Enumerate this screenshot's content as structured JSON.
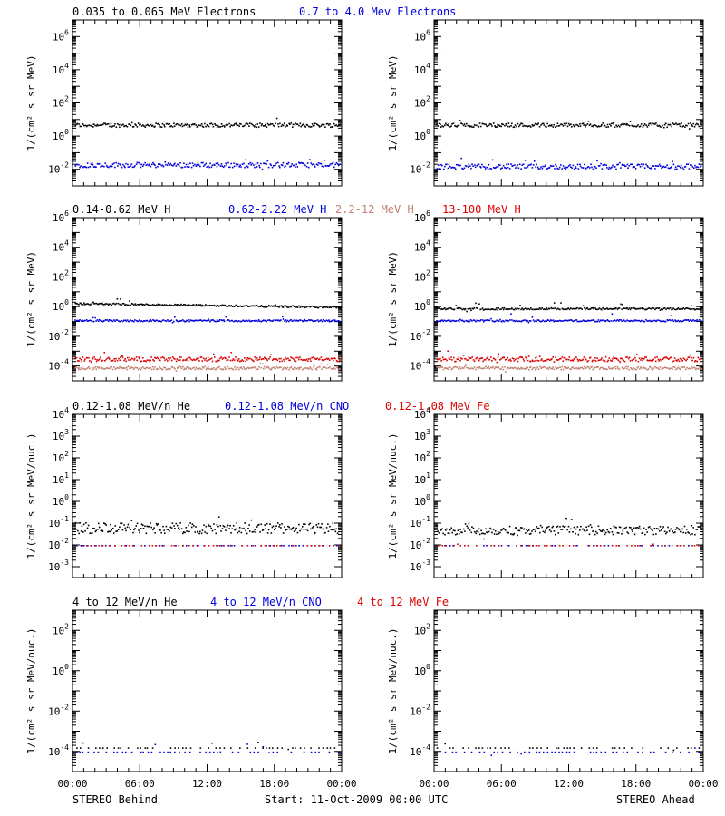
{
  "footer": {
    "left": "STEREO Behind",
    "center": "Start: 11-Oct-2009 00:00 UTC",
    "right": "STEREO Ahead"
  },
  "x_ticks": [
    "00:00",
    "06:00",
    "12:00",
    "18:00",
    "00:00"
  ],
  "colors": {
    "black": "#000000",
    "blue": "#0000dd",
    "tan": "#c08070",
    "red": "#dd0000"
  },
  "chart_data": [
    {
      "type": "scatter",
      "row": 0,
      "y_units": "log",
      "ylabel": "1/(cm² s sr MeV)",
      "ylim_exp": [
        -3,
        7
      ],
      "ytick_exps": [
        -2,
        0,
        2,
        4,
        6
      ],
      "legend": [
        {
          "label": "0.035 to 0.065 MeV Electrons",
          "color": "black"
        },
        {
          "label": "0.7 to 4.0 Mev Electrons",
          "color": "blue"
        }
      ],
      "behind": [
        {
          "name": "0.035 to 0.065 MeV Electrons",
          "color": "black",
          "level_exp": 0.7,
          "scatter": 0.12
        },
        {
          "name": "0.7 to 4.0 Mev Electrons",
          "color": "blue",
          "level_exp": -1.7,
          "scatter": 0.15
        }
      ],
      "ahead": [
        {
          "name": "0.035 to 0.065 MeV Electrons",
          "color": "black",
          "level_exp": 0.7,
          "scatter": 0.12
        },
        {
          "name": "0.7 to 4.0 Mev Electrons",
          "color": "blue",
          "level_exp": -1.8,
          "scatter": 0.15
        }
      ]
    },
    {
      "type": "scatter",
      "row": 1,
      "y_units": "log",
      "ylabel": "1/(cm² s sr MeV)",
      "ylim_exp": [
        -5,
        6
      ],
      "ytick_exps": [
        -4,
        -2,
        0,
        2,
        4,
        6
      ],
      "legend": [
        {
          "label": "0.14-0.62 MeV H",
          "color": "black"
        },
        {
          "label": "0.62-2.22 MeV H",
          "color": "blue"
        },
        {
          "label": "2.2-12 MeV H",
          "color": "tan"
        },
        {
          "label": "13-100 MeV H",
          "color": "red"
        }
      ],
      "behind": [
        {
          "name": "0.14-0.62 MeV H",
          "color": "black",
          "level_exp": 0.0,
          "scatter": 0.06
        },
        {
          "name": "0.62-2.22 MeV H",
          "color": "blue",
          "level_exp": -0.9,
          "scatter": 0.06
        },
        {
          "name": "2.2-12 MeV H",
          "color": "tan",
          "level_exp": -4.1,
          "scatter": 0.1
        },
        {
          "name": "13-100 MeV H",
          "color": "red",
          "level_exp": -3.5,
          "scatter": 0.15
        }
      ],
      "ahead": [
        {
          "name": "0.14-0.62 MeV H",
          "color": "black",
          "level_exp": -0.1,
          "scatter": 0.06
        },
        {
          "name": "0.62-2.22 MeV H",
          "color": "blue",
          "level_exp": -0.9,
          "scatter": 0.06
        },
        {
          "name": "2.2-12 MeV H",
          "color": "tan",
          "level_exp": -4.1,
          "scatter": 0.1
        },
        {
          "name": "13-100 MeV H",
          "color": "red",
          "level_exp": -3.5,
          "scatter": 0.15
        }
      ]
    },
    {
      "type": "scatter",
      "row": 2,
      "y_units": "log",
      "ylabel": "1/(cm² s sr MeV/nuc.)",
      "ylim_exp": [
        -3.5,
        4
      ],
      "ytick_exps": [
        -3,
        -2,
        -1,
        0,
        1,
        2,
        3,
        4
      ],
      "legend": [
        {
          "label": "0.12-1.08 MeV/n He",
          "color": "black"
        },
        {
          "label": "0.12-1.08 MeV/n CNO",
          "color": "blue"
        },
        {
          "label": "0.12-1.08 MeV Fe",
          "color": "red"
        }
      ],
      "behind": [
        {
          "name": "0.12-1.08 MeV/n He",
          "color": "black",
          "level_exp": -1.2,
          "scatter": 0.25
        },
        {
          "name": "0.12-1.08 MeV/n CNO",
          "color": "blue",
          "level_exp": -2.0,
          "scatter": 0.0
        },
        {
          "name": "0.12-1.08 MeV Fe",
          "color": "red",
          "level_exp": -2.0,
          "scatter": 0.0
        }
      ],
      "ahead": [
        {
          "name": "0.12-1.08 MeV/n He",
          "color": "black",
          "level_exp": -1.3,
          "scatter": 0.2
        },
        {
          "name": "0.12-1.08 MeV/n CNO",
          "color": "blue",
          "level_exp": -2.0,
          "scatter": 0.0
        },
        {
          "name": "0.12-1.08 MeV Fe",
          "color": "red",
          "level_exp": -2.0,
          "scatter": 0.0
        }
      ]
    },
    {
      "type": "scatter",
      "row": 3,
      "y_units": "log",
      "ylabel": "1/(cm² s sr MeV/nuc.)",
      "ylim_exp": [
        -5,
        3
      ],
      "ytick_exps": [
        -4,
        -2,
        0,
        2
      ],
      "legend": [
        {
          "label": "4 to 12 MeV/n He",
          "color": "black"
        },
        {
          "label": "4 to 12 MeV/n CNO",
          "color": "blue"
        },
        {
          "label": "4 to 12 MeV Fe",
          "color": "red"
        }
      ],
      "behind": [
        {
          "name": "4 to 12 MeV/n CNO",
          "color": "blue",
          "level_exp": -4.0,
          "scatter": 0.0
        },
        {
          "name": "4 to 12 MeV/n He",
          "color": "black",
          "level_exp": -3.8,
          "scatter": 0.0
        }
      ],
      "ahead": [
        {
          "name": "4 to 12 MeV/n CNO",
          "color": "blue",
          "level_exp": -4.0,
          "scatter": 0.0
        },
        {
          "name": "4 to 12 MeV/n He",
          "color": "black",
          "level_exp": -3.8,
          "scatter": 0.0
        }
      ]
    }
  ]
}
